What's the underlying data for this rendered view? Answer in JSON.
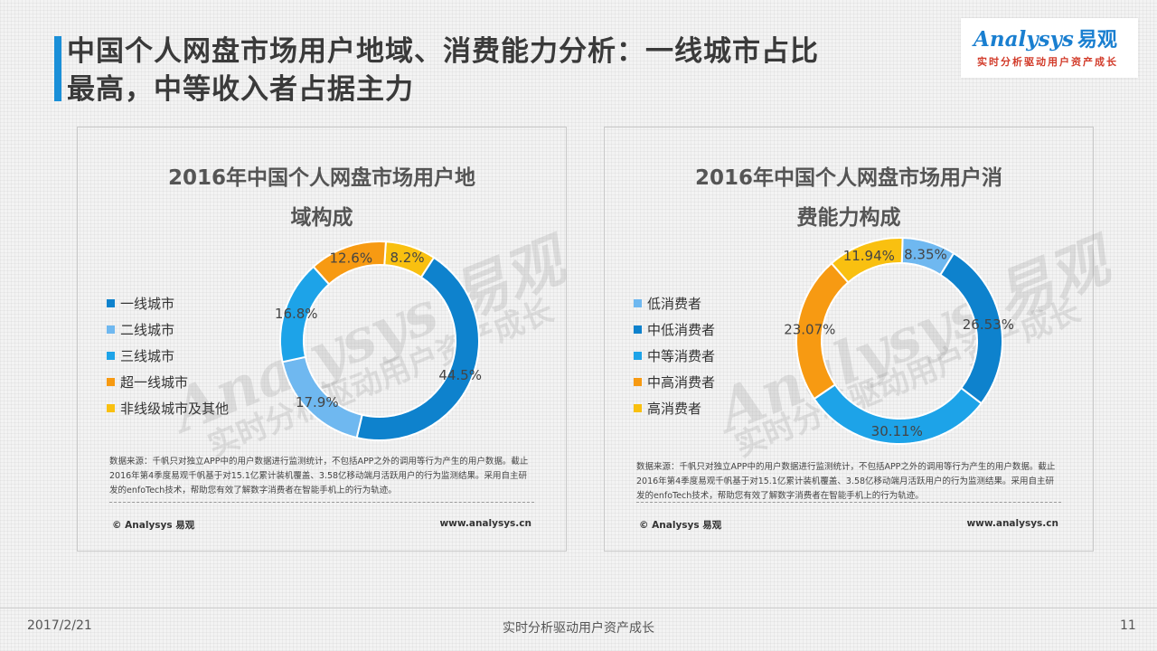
{
  "header": {
    "title_line1": "中国个人网盘市场用户地域、消费能力分析：一线城市占比",
    "title_line2": "最高，中等收入者占据主力"
  },
  "logo": {
    "text_en": "Analysys",
    "text_cn": "易观",
    "slogan": "实时分析驱动用户资产成长"
  },
  "watermark": {
    "text_en": "Analysys 易观",
    "text_cn": "实时分析驱动用户资产成长"
  },
  "source_note": "数据来源：千帆只对独立APP中的用户数据进行监测统计，不包括APP之外的调用等行为产生的用户数据。截止2016年第4季度易观千帆基于对15.1亿累计装机覆盖、3.58亿移动端月活跃用户的行为监测结果。采用自主研发的enfoTech技术，帮助您有效了解数字消费者在智能手机上的行为轨迹。",
  "copyright": "© Analysys 易观",
  "website": "www.analysys.cn",
  "footer": {
    "date": "2017/2/21",
    "slogan": "实时分析驱动用户资产成长",
    "page": "11"
  },
  "chart_data": [
    {
      "type": "pie",
      "variant": "donut",
      "title": "2016年中国个人网盘市场用户地域构成",
      "title_line1": "2016年中国个人网盘市场用户地",
      "title_line2": "域构成",
      "categories": [
        "一线城市",
        "二线城市",
        "三线城市",
        "超一线城市",
        "非线级城市及其他"
      ],
      "values": [
        44.5,
        17.9,
        16.8,
        12.6,
        8.2
      ],
      "value_labels": [
        "44.5%",
        "17.9%",
        "16.8%",
        "12.6%",
        "8.2%"
      ],
      "colors": [
        "#0e82cd",
        "#6fb8f0",
        "#1da3e8",
        "#f79a12",
        "#f9c010"
      ],
      "legend_position": "left"
    },
    {
      "type": "pie",
      "variant": "donut",
      "title": "2016年中国个人网盘市场用户消费能力构成",
      "title_line1": "2016年中国个人网盘市场用户消",
      "title_line2": "费能力构成",
      "categories": [
        "低消费者",
        "中低消费者",
        "中等消费者",
        "中高消费者",
        "高消费者"
      ],
      "values": [
        8.35,
        26.53,
        30.11,
        23.07,
        11.94
      ],
      "value_labels": [
        "8.35%",
        "26.53%",
        "30.11%",
        "23.07%",
        "11.94%"
      ],
      "colors": [
        "#6fb8f0",
        "#0e82cd",
        "#1da3e8",
        "#f79a12",
        "#f9c010"
      ],
      "legend_position": "left"
    }
  ]
}
